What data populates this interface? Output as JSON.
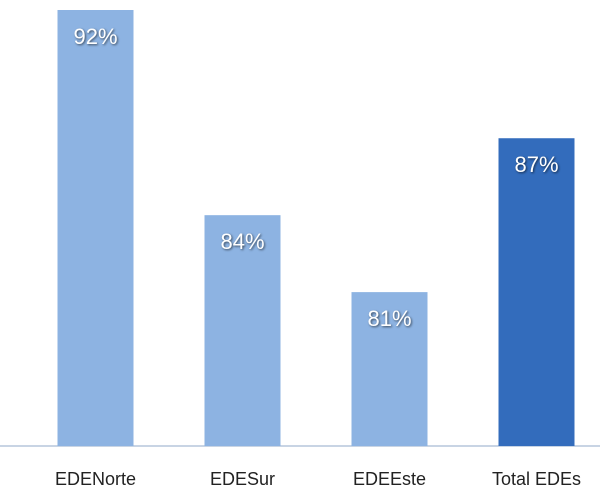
{
  "chart_data": {
    "type": "bar",
    "categories": [
      "EDENorte",
      "EDESur",
      "EDEEste",
      "Total EDEs"
    ],
    "values": [
      92,
      84,
      81,
      87
    ],
    "value_labels": [
      "92%",
      "84%",
      "81%",
      "87%"
    ],
    "colors": [
      "#8db3e2",
      "#8db3e2",
      "#8db3e2",
      "#336cbc"
    ],
    "ylim": [
      75,
      92
    ]
  }
}
